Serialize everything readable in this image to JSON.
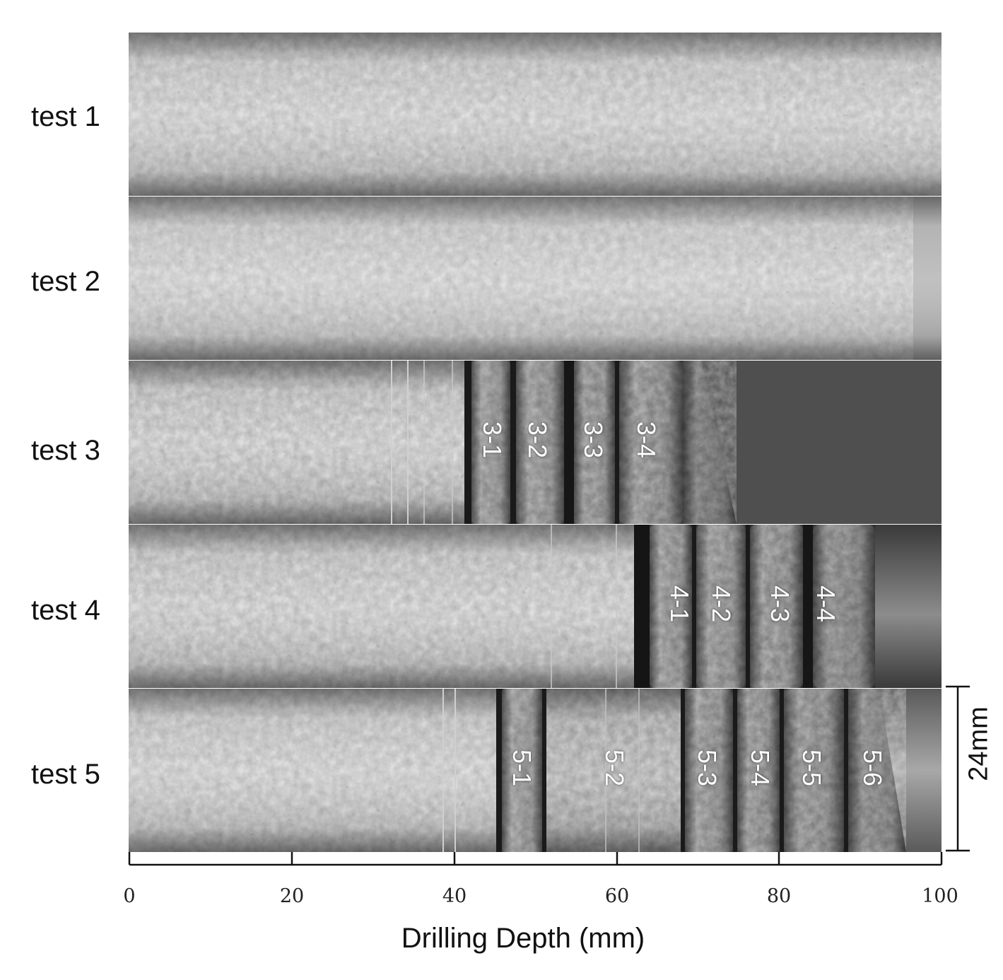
{
  "figure": {
    "rows": [
      {
        "label": "test 1",
        "segments": []
      },
      {
        "label": "test 2",
        "segments": []
      },
      {
        "label": "test 3",
        "segments": [
          "3-1",
          "3-2",
          "3-3",
          "3-4"
        ]
      },
      {
        "label": "test 4",
        "segments": [
          "4-1",
          "4-2",
          "4-3",
          "4-4"
        ]
      },
      {
        "label": "test 5",
        "segments": [
          "5-1",
          "5-2",
          "5-3",
          "5-4",
          "5-5",
          "5-6"
        ]
      }
    ],
    "x_axis": {
      "title": "Drilling Depth (mm)",
      "ticks": [
        "0",
        "20",
        "40",
        "60",
        "80",
        "100"
      ]
    },
    "scale_bar": {
      "label": "24mm"
    },
    "colors": {
      "core_light": "#b8b8b8",
      "core_dark": "#555555",
      "empty_bore": "#4a4a4a"
    }
  }
}
